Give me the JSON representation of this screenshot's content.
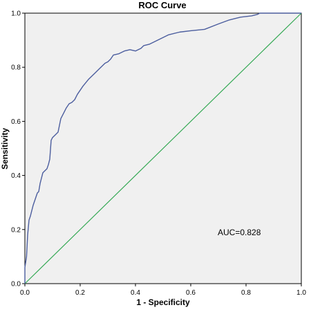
{
  "chart_data": {
    "type": "line",
    "title": "ROC Curve",
    "xlabel": "1 - Specificity",
    "ylabel": "Sensitivity",
    "xlim": [
      0,
      1.0
    ],
    "ylim": [
      0,
      1.0
    ],
    "x_ticks": [
      "0.0",
      "0.2",
      "0.4",
      "0.6",
      "0.8",
      "1.0"
    ],
    "y_ticks": [
      "0.0",
      "0.2",
      "0.4",
      "0.6",
      "0.8",
      "1.0"
    ],
    "grid": false,
    "annotation": "AUC=0.828",
    "colors": {
      "plot_bg": "#f0f0f0",
      "roc": "#4b5d9e",
      "reference": "#33a853"
    },
    "series": [
      {
        "values_xy": [
          [
            0.0,
            0.0
          ],
          [
            0.0,
            0.06
          ],
          [
            0.006,
            0.1
          ],
          [
            0.008,
            0.14
          ],
          [
            0.01,
            0.18
          ],
          [
            0.015,
            0.235
          ],
          [
            0.02,
            0.25
          ],
          [
            0.03,
            0.29
          ],
          [
            0.04,
            0.32
          ],
          [
            0.045,
            0.335
          ],
          [
            0.05,
            0.34
          ],
          [
            0.055,
            0.37
          ],
          [
            0.06,
            0.39
          ],
          [
            0.065,
            0.41
          ],
          [
            0.07,
            0.415
          ],
          [
            0.08,
            0.425
          ],
          [
            0.085,
            0.44
          ],
          [
            0.09,
            0.46
          ],
          [
            0.095,
            0.53
          ],
          [
            0.1,
            0.54
          ],
          [
            0.11,
            0.55
          ],
          [
            0.12,
            0.56
          ],
          [
            0.13,
            0.61
          ],
          [
            0.14,
            0.63
          ],
          [
            0.15,
            0.65
          ],
          [
            0.16,
            0.665
          ],
          [
            0.17,
            0.67
          ],
          [
            0.18,
            0.68
          ],
          [
            0.19,
            0.7
          ],
          [
            0.2,
            0.715
          ],
          [
            0.21,
            0.73
          ],
          [
            0.23,
            0.755
          ],
          [
            0.25,
            0.775
          ],
          [
            0.27,
            0.795
          ],
          [
            0.29,
            0.815
          ],
          [
            0.3,
            0.82
          ],
          [
            0.31,
            0.83
          ],
          [
            0.32,
            0.845
          ],
          [
            0.34,
            0.85
          ],
          [
            0.36,
            0.86
          ],
          [
            0.38,
            0.865
          ],
          [
            0.4,
            0.86
          ],
          [
            0.42,
            0.87
          ],
          [
            0.43,
            0.88
          ],
          [
            0.45,
            0.885
          ],
          [
            0.48,
            0.9
          ],
          [
            0.52,
            0.92
          ],
          [
            0.56,
            0.93
          ],
          [
            0.6,
            0.935
          ],
          [
            0.65,
            0.94
          ],
          [
            0.7,
            0.96
          ],
          [
            0.74,
            0.975
          ],
          [
            0.78,
            0.985
          ],
          [
            0.82,
            0.99
          ],
          [
            0.84,
            0.995
          ],
          [
            0.85,
            1.0
          ],
          [
            1.0,
            1.0
          ]
        ]
      },
      {
        "values_xy": [
          [
            0.0,
            0.0
          ],
          [
            1.0,
            1.0
          ]
        ]
      }
    ]
  }
}
